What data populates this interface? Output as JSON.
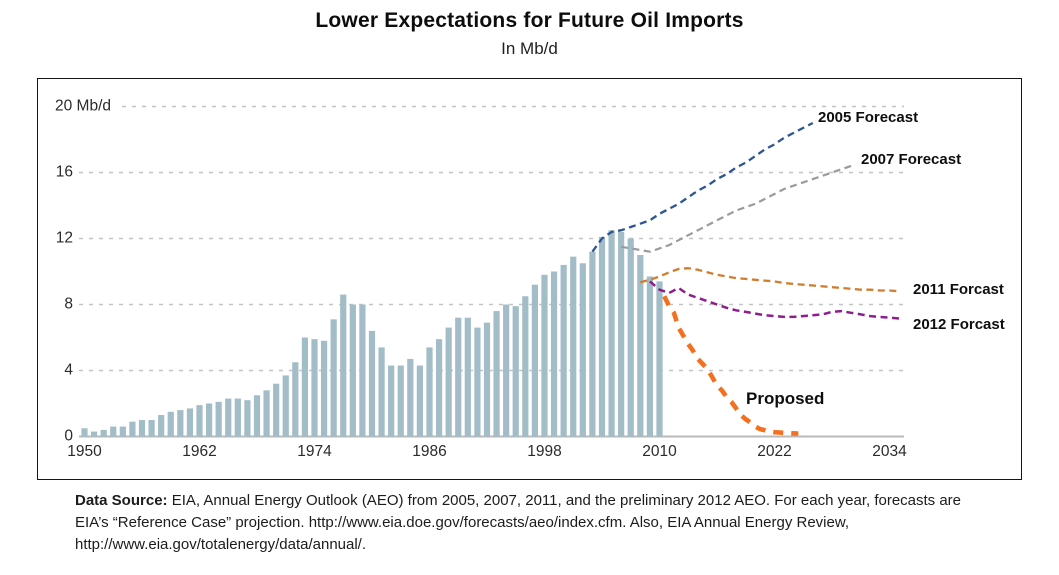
{
  "title": "Lower Expectations for Future Oil Imports",
  "subtitle": "In Mb/d",
  "source_note": {
    "label": "Data Source:",
    "text": " EIA, Annual Energy Outlook (AEO) from 2005, 2007, 2011, and the preliminary 2012 AEO. For each year, forecasts are EIA’s “Reference Case” projection. http://www.eia.doe.gov/forecasts/aeo/index.cfm. Also, EIA Annual Energy Review, http://www.eia.gov/totalenergy/data/annual/."
  },
  "chart_data": {
    "type": "bar",
    "title": "Lower Expectations for Future Oil Imports",
    "unit": "Mb/d",
    "grid": "dashed horizontal",
    "ylim": [
      0,
      21.5
    ],
    "xlim": [
      1949,
      2037
    ],
    "y_ticks": [
      0,
      4,
      8,
      12,
      16,
      20
    ],
    "y_tick_labels": [
      "0",
      "4",
      "8",
      "12",
      "16",
      "20 Mb/d"
    ],
    "x_ticks": [
      1950,
      1962,
      1974,
      1986,
      1998,
      2010,
      2022,
      2034
    ],
    "bars": {
      "name": "historical-oil-imports",
      "color": "#a2bdc7",
      "start_year": 1950,
      "values": [
        0.5,
        0.3,
        0.4,
        0.6,
        0.6,
        0.9,
        1.0,
        1.0,
        1.3,
        1.5,
        1.6,
        1.7,
        1.9,
        2.0,
        2.1,
        2.3,
        2.3,
        2.2,
        2.5,
        2.8,
        3.2,
        3.7,
        4.5,
        6.0,
        5.9,
        5.8,
        7.1,
        8.6,
        8.0,
        8.0,
        6.4,
        5.4,
        4.3,
        4.3,
        4.7,
        4.3,
        5.4,
        5.9,
        6.6,
        7.2,
        7.2,
        6.6,
        6.9,
        7.6,
        8.0,
        7.9,
        8.5,
        9.2,
        9.8,
        10.0,
        10.4,
        10.9,
        10.5,
        11.2,
        12.1,
        12.5,
        12.4,
        12.0,
        11.0,
        9.7,
        9.4
      ]
    },
    "series": [
      {
        "name": "2005 Forecast",
        "color": "#2b5593",
        "dash": "7 4.5",
        "width": 2.3,
        "points": [
          [
            2003,
            11.2
          ],
          [
            2004,
            12.0
          ],
          [
            2005,
            12.4
          ],
          [
            2006,
            12.5
          ],
          [
            2007,
            12.7
          ],
          [
            2008,
            12.9
          ],
          [
            2009,
            13.1
          ],
          [
            2010,
            13.5
          ],
          [
            2011,
            13.8
          ],
          [
            2012,
            14.1
          ],
          [
            2013,
            14.5
          ],
          [
            2014,
            14.9
          ],
          [
            2015,
            15.2
          ],
          [
            2016,
            15.6
          ],
          [
            2017,
            15.9
          ],
          [
            2018,
            16.3
          ],
          [
            2019,
            16.6
          ],
          [
            2020,
            17.0
          ],
          [
            2021,
            17.4
          ],
          [
            2022,
            17.7
          ],
          [
            2023,
            18.1
          ],
          [
            2024,
            18.4
          ],
          [
            2025,
            18.7
          ],
          [
            2026,
            19.0
          ]
        ]
      },
      {
        "name": "2007 Forecast",
        "color": "#9b9b9b",
        "dash": "7 4.5",
        "width": 2.2,
        "points": [
          [
            2006,
            11.5
          ],
          [
            2007,
            11.4
          ],
          [
            2008,
            11.3
          ],
          [
            2009,
            11.2
          ],
          [
            2010,
            11.4
          ],
          [
            2011,
            11.6
          ],
          [
            2012,
            11.9
          ],
          [
            2013,
            12.2
          ],
          [
            2014,
            12.5
          ],
          [
            2015,
            12.8
          ],
          [
            2016,
            13.1
          ],
          [
            2017,
            13.4
          ],
          [
            2018,
            13.7
          ],
          [
            2019,
            13.9
          ],
          [
            2020,
            14.1
          ],
          [
            2021,
            14.4
          ],
          [
            2022,
            14.7
          ],
          [
            2023,
            15.0
          ],
          [
            2024,
            15.2
          ],
          [
            2025,
            15.4
          ],
          [
            2026,
            15.6
          ],
          [
            2027,
            15.8
          ],
          [
            2028,
            16.0
          ],
          [
            2029,
            16.2
          ],
          [
            2030,
            16.4
          ]
        ]
      },
      {
        "name": "2011 Forcast",
        "color": "#d07e2e",
        "dash": "7 4.5",
        "width": 2.3,
        "points": [
          [
            2008,
            9.35
          ],
          [
            2009,
            9.5
          ],
          [
            2010,
            9.7
          ],
          [
            2011,
            9.95
          ],
          [
            2012,
            10.15
          ],
          [
            2013,
            10.2
          ],
          [
            2014,
            10.1
          ],
          [
            2015,
            9.95
          ],
          [
            2016,
            9.8
          ],
          [
            2017,
            9.7
          ],
          [
            2018,
            9.6
          ],
          [
            2019,
            9.55
          ],
          [
            2020,
            9.5
          ],
          [
            2021,
            9.45
          ],
          [
            2022,
            9.4
          ],
          [
            2023,
            9.3
          ],
          [
            2024,
            9.25
          ],
          [
            2025,
            9.2
          ],
          [
            2026,
            9.15
          ],
          [
            2027,
            9.1
          ],
          [
            2028,
            9.05
          ],
          [
            2029,
            9.0
          ],
          [
            2030,
            8.95
          ],
          [
            2031,
            8.9
          ],
          [
            2032,
            8.9
          ],
          [
            2033,
            8.85
          ],
          [
            2034,
            8.85
          ],
          [
            2035,
            8.8
          ]
        ]
      },
      {
        "name": "2012 Forcast",
        "color": "#8e1d8e",
        "dash": "7 4.5",
        "width": 2.5,
        "points": [
          [
            2009,
            9.4
          ],
          [
            2010,
            8.9
          ],
          [
            2011,
            8.7
          ],
          [
            2012,
            9.0
          ],
          [
            2013,
            8.6
          ],
          [
            2014,
            8.4
          ],
          [
            2015,
            8.2
          ],
          [
            2016,
            8.0
          ],
          [
            2017,
            7.8
          ],
          [
            2018,
            7.65
          ],
          [
            2019,
            7.55
          ],
          [
            2020,
            7.45
          ],
          [
            2021,
            7.35
          ],
          [
            2022,
            7.3
          ],
          [
            2023,
            7.25
          ],
          [
            2024,
            7.25
          ],
          [
            2025,
            7.3
          ],
          [
            2026,
            7.35
          ],
          [
            2027,
            7.4
          ],
          [
            2028,
            7.55
          ],
          [
            2029,
            7.6
          ],
          [
            2030,
            7.5
          ],
          [
            2031,
            7.4
          ],
          [
            2032,
            7.3
          ],
          [
            2033,
            7.25
          ],
          [
            2034,
            7.2
          ],
          [
            2035,
            7.15
          ]
        ]
      },
      {
        "name": "Proposed",
        "color": "#f4701f",
        "dash": "10 8",
        "width": 4.6,
        "points": [
          [
            2010.5,
            8.5
          ],
          [
            2011,
            7.9
          ],
          [
            2011.5,
            7.5
          ],
          [
            2012,
            6.6
          ],
          [
            2012.5,
            6.1
          ],
          [
            2013,
            5.6
          ],
          [
            2013.5,
            5.2
          ],
          [
            2014,
            4.7
          ],
          [
            2014.5,
            4.4
          ],
          [
            2015,
            4.1
          ],
          [
            2015.5,
            3.6
          ],
          [
            2016,
            3.1
          ],
          [
            2016.5,
            2.8
          ],
          [
            2017,
            2.4
          ],
          [
            2017.5,
            2.1
          ],
          [
            2018,
            1.7
          ],
          [
            2018.5,
            1.3
          ],
          [
            2019,
            1.05
          ],
          [
            2019.5,
            0.85
          ],
          [
            2020,
            0.6
          ],
          [
            2020.5,
            0.45
          ],
          [
            2021,
            0.38
          ],
          [
            2021.5,
            0.3
          ],
          [
            2022,
            0.26
          ],
          [
            2022.5,
            0.24
          ],
          [
            2023,
            0.22
          ],
          [
            2023.5,
            0.2
          ],
          [
            2024.5,
            0.18
          ]
        ]
      }
    ],
    "colors": {
      "bar": "#a2bdc7",
      "gridline": "#c4c4c4",
      "baseline": "#b9b9b9",
      "frame_border": "#151515"
    }
  }
}
